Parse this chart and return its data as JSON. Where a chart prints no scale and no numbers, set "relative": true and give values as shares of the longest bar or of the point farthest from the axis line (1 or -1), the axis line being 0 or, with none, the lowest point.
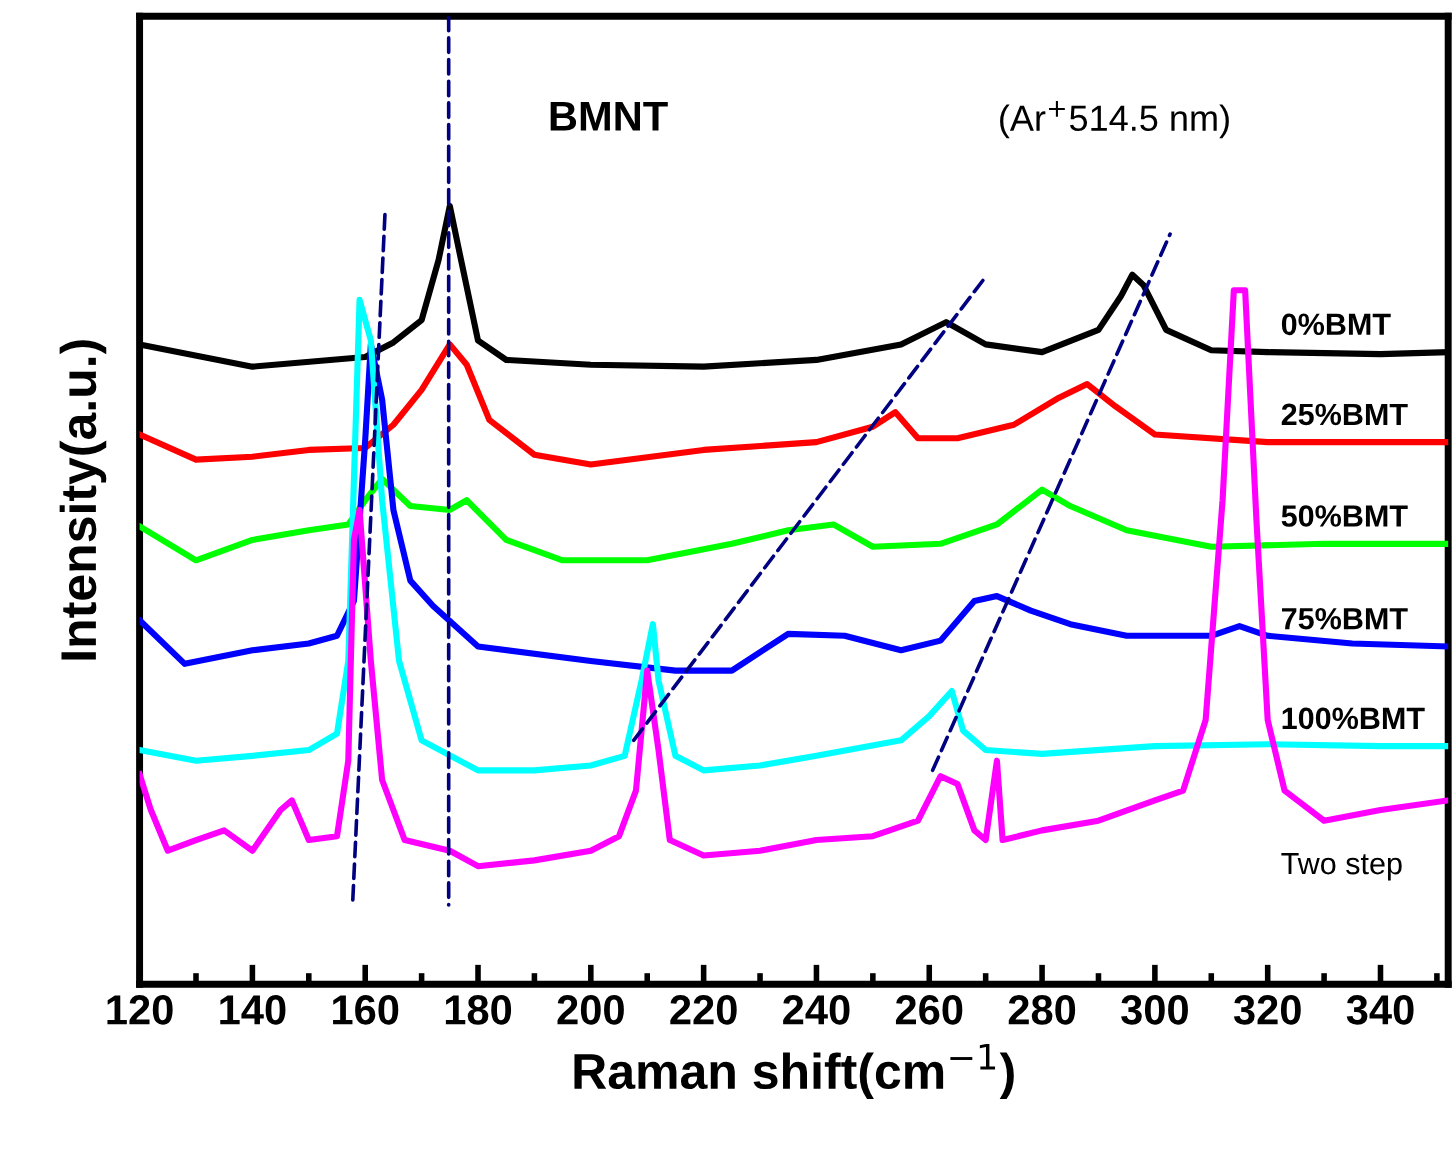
{
  "chart_data": {
    "type": "line",
    "relative": true,
    "title": "BMNT",
    "xlabel": "Raman shift(cm$^{−1}$)",
    "ylabel": "Intensity(a.u.)",
    "annotations": [
      "(Ar$^{+}$514.5 nm)"
    ],
    "xlim": [
      120,
      352
    ],
    "xticks": [
      120,
      140,
      160,
      180,
      200,
      220,
      240,
      260,
      280,
      300,
      320,
      340
    ],
    "tick_labels": "x",
    "grid": false,
    "legend": false,
    "marker": "none",
    "series": [
      {
        "name": "0%BMT",
        "color": "#000000",
        "x": [
          120,
          140,
          160,
          165,
          170,
          173,
          175,
          177,
          180,
          185,
          200,
          220,
          240,
          255,
          263,
          270,
          280,
          290,
          294,
          296,
          298,
          302,
          310,
          320,
          340,
          352
        ],
        "values": [
          0.661,
          0.638,
          0.648,
          0.663,
          0.686,
          0.748,
          0.804,
          0.748,
          0.665,
          0.645,
          0.64,
          0.638,
          0.645,
          0.661,
          0.684,
          0.661,
          0.653,
          0.676,
          0.711,
          0.733,
          0.722,
          0.676,
          0.655,
          0.653,
          0.651,
          0.653
        ]
      },
      {
        "name": "25%BMT",
        "color": "#ff0000",
        "x": [
          120,
          130,
          140,
          150,
          160,
          165,
          170,
          175,
          178,
          182,
          190,
          200,
          220,
          240,
          250,
          254,
          258,
          265,
          275,
          283,
          288,
          293,
          300,
          320,
          340,
          352
        ],
        "values": [
          0.568,
          0.542,
          0.545,
          0.552,
          0.554,
          0.578,
          0.614,
          0.661,
          0.64,
          0.583,
          0.547,
          0.537,
          0.552,
          0.56,
          0.576,
          0.591,
          0.564,
          0.564,
          0.578,
          0.606,
          0.62,
          0.597,
          0.568,
          0.56,
          0.56,
          0.56
        ]
      },
      {
        "name": "50%BMT",
        "color": "#00ff00",
        "x": [
          120,
          130,
          140,
          150,
          157,
          160,
          163,
          168,
          175,
          178,
          185,
          195,
          210,
          225,
          235,
          243,
          250,
          262,
          272,
          280,
          285,
          295,
          310,
          330,
          352
        ],
        "values": [
          0.473,
          0.438,
          0.459,
          0.469,
          0.475,
          0.5,
          0.522,
          0.494,
          0.49,
          0.5,
          0.459,
          0.438,
          0.438,
          0.455,
          0.469,
          0.475,
          0.452,
          0.455,
          0.475,
          0.511,
          0.494,
          0.469,
          0.452,
          0.455,
          0.455
        ]
      },
      {
        "name": "75%BMT",
        "color": "#0000ff",
        "x": [
          120,
          128,
          140,
          150,
          155,
          158,
          160,
          161,
          163,
          165,
          168,
          172,
          180,
          200,
          215,
          225,
          235,
          245,
          255,
          262,
          268,
          272,
          278,
          285,
          295,
          310,
          315,
          320,
          335,
          352
        ],
        "values": [
          0.376,
          0.331,
          0.345,
          0.352,
          0.36,
          0.396,
          0.562,
          0.661,
          0.604,
          0.49,
          0.417,
          0.391,
          0.349,
          0.334,
          0.324,
          0.324,
          0.362,
          0.36,
          0.345,
          0.355,
          0.396,
          0.401,
          0.386,
          0.372,
          0.36,
          0.36,
          0.37,
          0.36,
          0.352,
          0.349
        ]
      },
      {
        "name": "100%BMT",
        "color": "#00ffff",
        "x": [
          120,
          130,
          140,
          150,
          155,
          157,
          159,
          161,
          163,
          166,
          170,
          180,
          190,
          200,
          206,
          209,
          211,
          212,
          215,
          220,
          230,
          240,
          255,
          260,
          264,
          266,
          270,
          280,
          300,
          320,
          340,
          352
        ],
        "values": [
          0.242,
          0.231,
          0.236,
          0.242,
          0.259,
          0.334,
          0.707,
          0.665,
          0.5,
          0.334,
          0.252,
          0.221,
          0.221,
          0.226,
          0.236,
          0.314,
          0.372,
          0.314,
          0.236,
          0.221,
          0.226,
          0.236,
          0.252,
          0.277,
          0.303,
          0.262,
          0.242,
          0.238,
          0.246,
          0.248,
          0.246,
          0.246
        ]
      },
      {
        "name": "Two step",
        "color": "#ff00ff",
        "x": [
          120,
          122,
          125,
          130,
          135,
          140,
          145,
          147,
          150,
          155,
          157,
          158,
          159,
          161,
          163,
          167,
          175,
          180,
          190,
          200,
          205,
          208,
          210,
          212,
          214,
          220,
          230,
          240,
          250,
          258,
          262,
          265,
          268,
          270,
          272,
          273,
          280,
          290,
          300,
          305,
          309,
          312,
          314,
          316,
          318,
          320,
          323,
          330,
          340,
          352
        ],
        "values": [
          0.217,
          0.18,
          0.138,
          0.149,
          0.159,
          0.138,
          0.18,
          0.19,
          0.149,
          0.153,
          0.231,
          0.459,
          0.49,
          0.334,
          0.211,
          0.149,
          0.138,
          0.122,
          0.128,
          0.138,
          0.153,
          0.2,
          0.324,
          0.242,
          0.149,
          0.133,
          0.138,
          0.149,
          0.153,
          0.169,
          0.215,
          0.207,
          0.159,
          0.149,
          0.231,
          0.149,
          0.159,
          0.169,
          0.19,
          0.2,
          0.273,
          0.5,
          0.717,
          0.717,
          0.48,
          0.273,
          0.2,
          0.169,
          0.18,
          0.19
        ]
      },
      {
        "type": "line",
        "line_style": "dashed",
        "color": "#000080",
        "x": [
          163.5,
          157.8
        ],
        "values": [
          0.795,
          0.087
        ]
      },
      {
        "type": "line",
        "line_style": "dashed",
        "color": "#000080",
        "x": [
          174.8,
          174.8
        ],
        "values": [
          1.0,
          0.082
        ]
      },
      {
        "type": "line",
        "line_style": "dashed",
        "color": "#000080",
        "x": [
          207.6,
          269.5
        ],
        "values": [
          0.252,
          0.727
        ]
      },
      {
        "type": "line",
        "line_style": "dashed",
        "color": "#000080",
        "x": [
          260.6,
          302.7
        ],
        "values": [
          0.221,
          0.775
        ]
      }
    ]
  }
}
